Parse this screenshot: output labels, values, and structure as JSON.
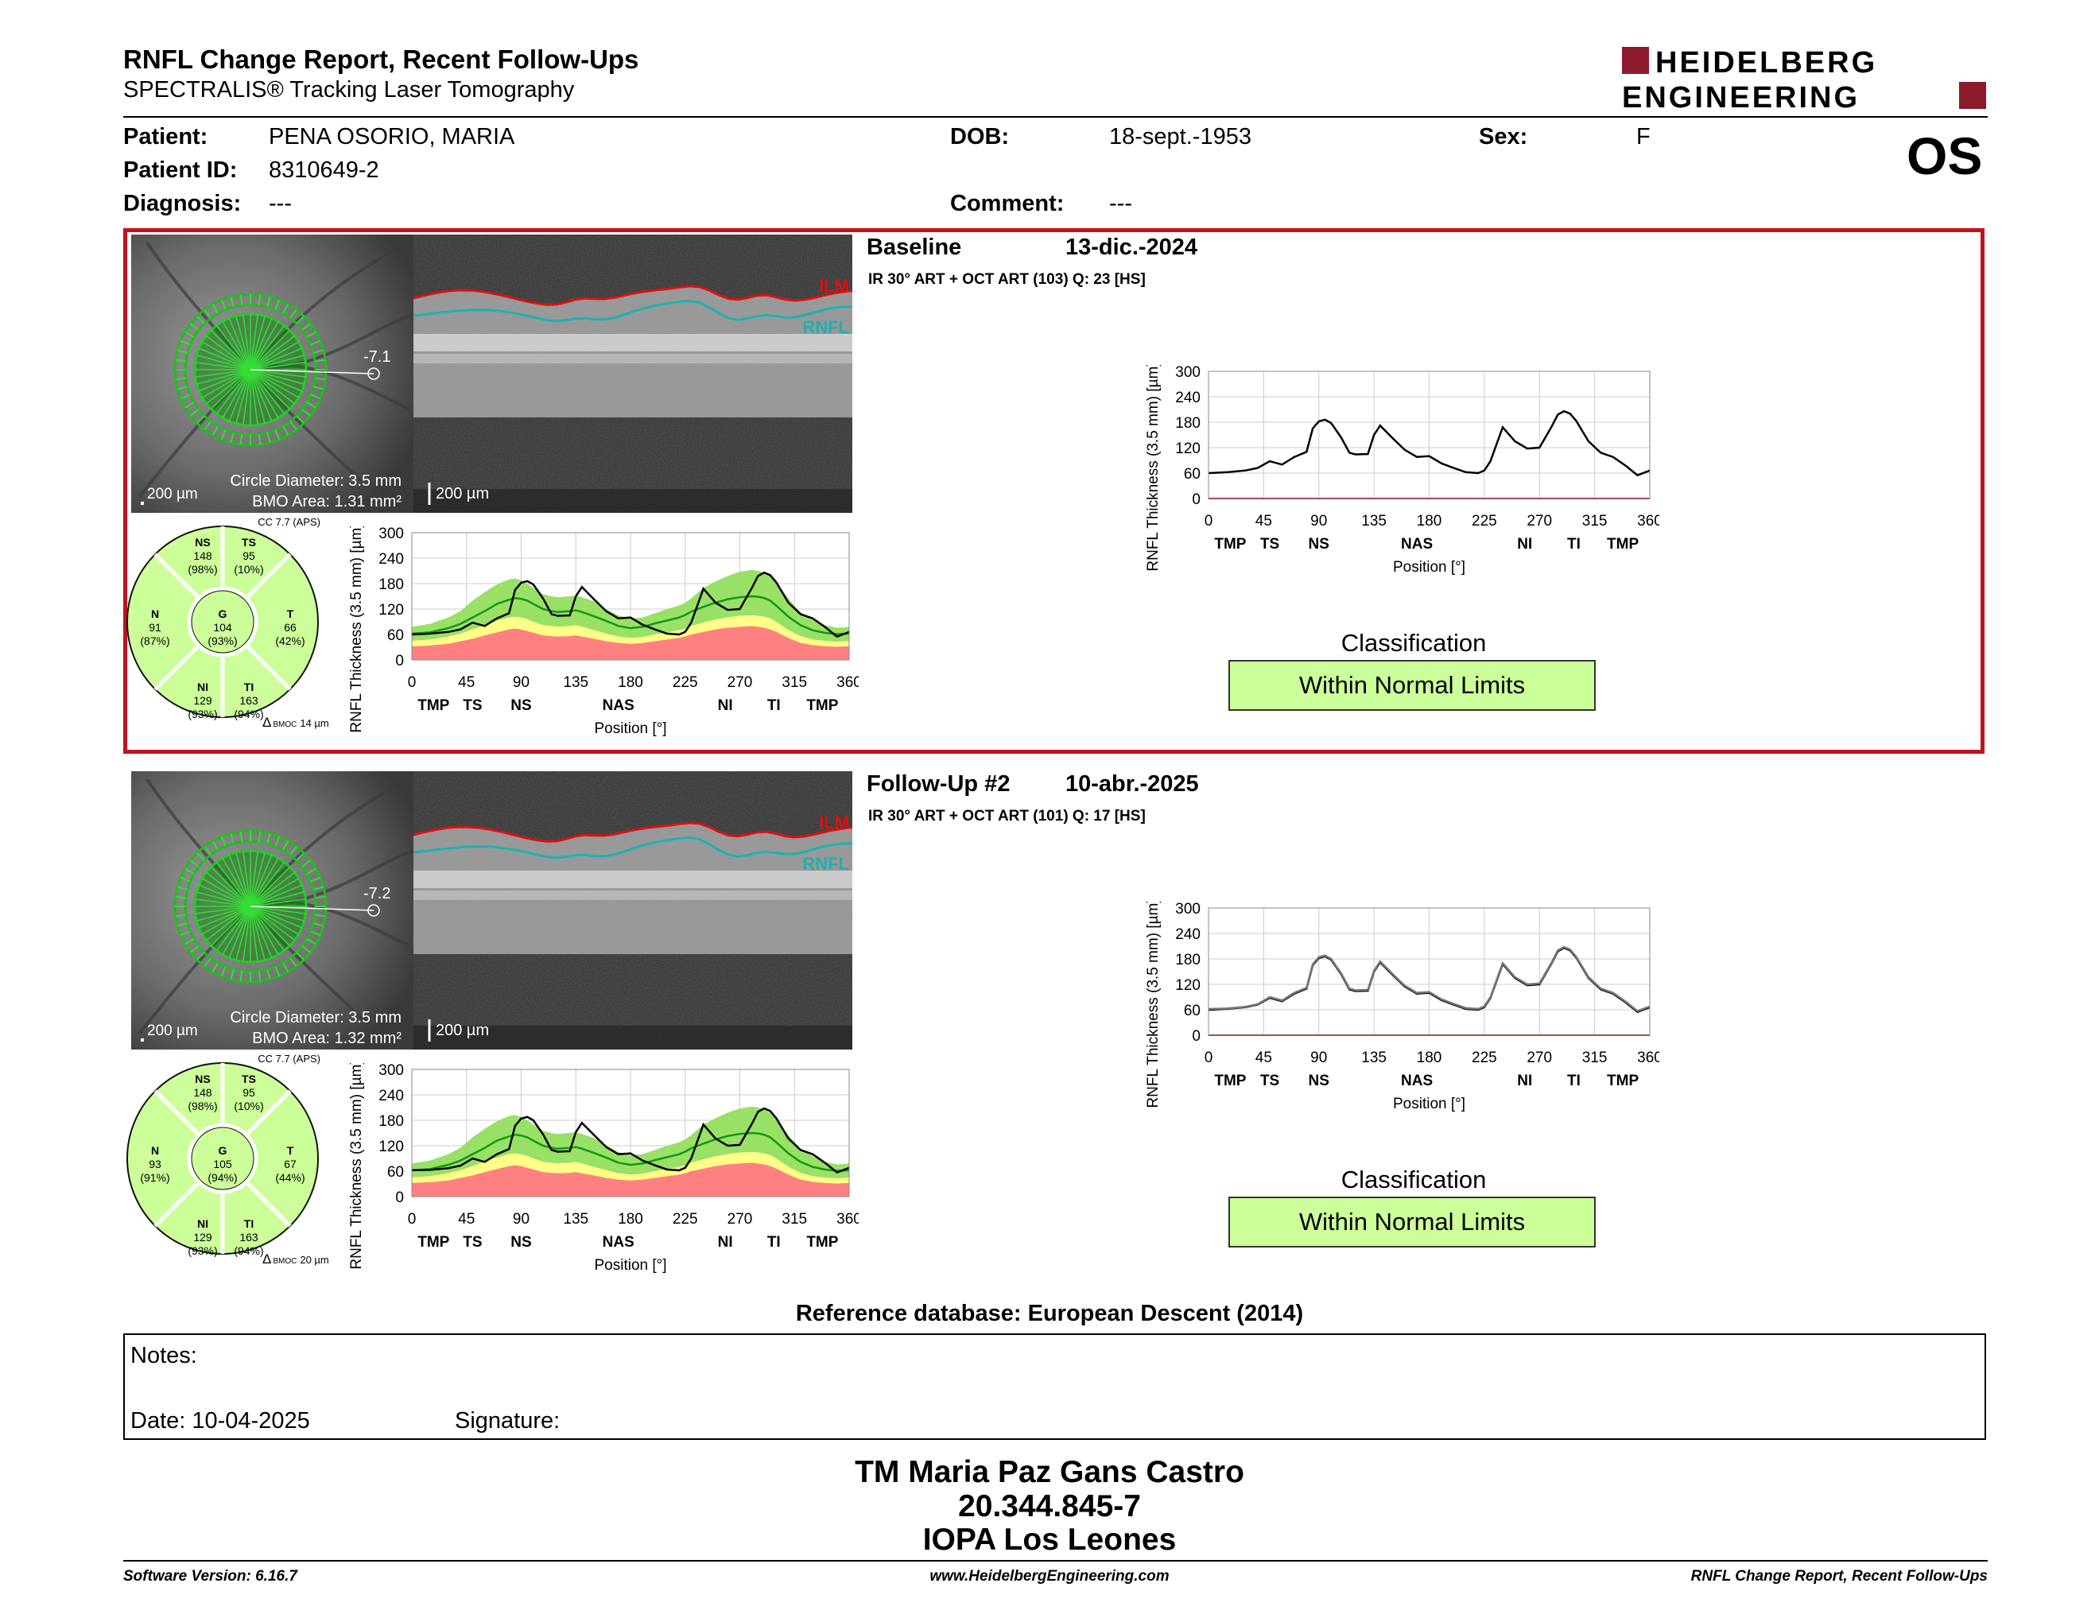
{
  "header": {
    "title": "RNFL Change Report, Recent Follow-Ups",
    "subtitle": "SPECTRALIS® Tracking Laser Tomography",
    "logo_line1": "HEIDELBERG",
    "logo_line2": "ENGINEERING",
    "eye": "OS"
  },
  "patient": {
    "patient_label": "Patient:",
    "patient_value": "PENA OSORIO, MARIA",
    "id_label": "Patient ID:",
    "id_value": "8310649-2",
    "diag_label": "Diagnosis:",
    "diag_value": "---",
    "dob_label": "DOB:",
    "dob_value": "18-sept.-1953",
    "comment_label": "Comment:",
    "comment_value": "---",
    "sex_label": "Sex:",
    "sex_value": "F"
  },
  "colors": {
    "highlight": "#c1121f",
    "normal_green": "#ccff99",
    "scan_green": "#33cc33",
    "ilm": "#e01010",
    "rnfl": "#20b0b0"
  },
  "exams": [
    {
      "label": "Baseline",
      "date": "13-dic.-2024",
      "protocol": "IR 30° ART + OCT ART (103) Q: 23 [HS]",
      "fundus": {
        "scale": "200 µm",
        "circle": "Circle Diameter: 3.5 mm",
        "bmo": "BMO Area: 1.31 mm²",
        "angle": "-7.1"
      },
      "bscan": {
        "scale": "200 µm",
        "ilm": "ILM",
        "rnfl": "RNFL"
      },
      "sectors": {
        "cc": "CC 7.7 (APS)",
        "NS": {
          "name": "NS",
          "value": "148",
          "pct": "(98%)"
        },
        "TS": {
          "name": "TS",
          "value": "95",
          "pct": "(10%)"
        },
        "N": {
          "name": "N",
          "value": "91",
          "pct": "(87%)"
        },
        "G": {
          "name": "G",
          "value": "104",
          "pct": "(93%)"
        },
        "T": {
          "name": "T",
          "value": "66",
          "pct": "(42%)"
        },
        "NI": {
          "name": "NI",
          "value": "129",
          "pct": "(93%)"
        },
        "TI": {
          "name": "TI",
          "value": "163",
          "pct": "(94%)"
        },
        "bmoc_prefix": "Δ",
        "bmoc_sub": "BMOC",
        "bmoc_value": "14 µm"
      },
      "classification_title": "Classification",
      "classification": "Within Normal Limits"
    },
    {
      "label": "Follow-Up #2",
      "date": "10-abr.-2025",
      "protocol": "IR 30° ART + OCT ART (101) Q: 17 [HS]",
      "fundus": {
        "scale": "200 µm",
        "circle": "Circle Diameter: 3.5 mm",
        "bmo": "BMO Area: 1.32 mm²",
        "angle": "-7.2"
      },
      "bscan": {
        "scale": "200 µm",
        "ilm": "ILM",
        "rnfl": "RNFL"
      },
      "sectors": {
        "cc": "CC 7.7 (APS)",
        "NS": {
          "name": "NS",
          "value": "148",
          "pct": "(98%)"
        },
        "TS": {
          "name": "TS",
          "value": "95",
          "pct": "(10%)"
        },
        "N": {
          "name": "N",
          "value": "93",
          "pct": "(91%)"
        },
        "G": {
          "name": "G",
          "value": "105",
          "pct": "(94%)"
        },
        "T": {
          "name": "T",
          "value": "67",
          "pct": "(44%)"
        },
        "NI": {
          "name": "NI",
          "value": "129",
          "pct": "(93%)"
        },
        "TI": {
          "name": "TI",
          "value": "163",
          "pct": "(94%)"
        },
        "bmoc_prefix": "Δ",
        "bmoc_sub": "BMOC",
        "bmoc_value": "20 µm"
      },
      "classification_title": "Classification",
      "classification": "Within Normal Limits"
    }
  ],
  "chart_data": [
    {
      "type": "area",
      "ylabel": "RNFL Thickness (3.5 mm) [µm]",
      "xlabel": "Position [°]",
      "x_ticks": [
        "0",
        "45",
        "90",
        "135",
        "180",
        "225",
        "270",
        "315",
        "360"
      ],
      "y_ticks": [
        "0",
        "60",
        "120",
        "180",
        "240",
        "300"
      ],
      "sector_labels": [
        "TMP",
        "TS",
        "NS",
        "NAS",
        "NI",
        "TI",
        "TMP"
      ],
      "sector_label_x": [
        10,
        50,
        90,
        170,
        258,
        298,
        338
      ],
      "xlim": [
        0,
        360
      ],
      "ylim": [
        0,
        300
      ],
      "x": [
        0,
        15,
        30,
        40,
        50,
        60,
        70,
        80,
        85,
        90,
        95,
        100,
        108,
        115,
        120,
        130,
        135,
        140,
        150,
        160,
        170,
        180,
        190,
        200,
        210,
        220,
        225,
        230,
        240,
        250,
        260,
        270,
        280,
        285,
        290,
        295,
        300,
        310,
        320,
        330,
        340,
        350,
        360
      ],
      "series": [
        {
          "name": "Baseline",
          "values": [
            60,
            62,
            66,
            72,
            88,
            80,
            98,
            110,
            165,
            182,
            186,
            178,
            145,
            108,
            104,
            105,
            150,
            172,
            143,
            115,
            98,
            100,
            83,
            72,
            62,
            60,
            66,
            88,
            168,
            135,
            118,
            120,
            170,
            198,
            206,
            200,
            183,
            135,
            108,
            98,
            78,
            55,
            66
          ]
        },
        {
          "name": "Follow-Up #2",
          "values": [
            62,
            63,
            67,
            73,
            90,
            82,
            100,
            112,
            167,
            184,
            188,
            180,
            147,
            110,
            106,
            107,
            152,
            174,
            145,
            117,
            100,
            102,
            85,
            74,
            64,
            62,
            68,
            90,
            170,
            137,
            120,
            122,
            172,
            200,
            208,
            202,
            185,
            137,
            110,
            100,
            80,
            57,
            68
          ]
        }
      ],
      "normal_band": {
        "upper": [
          78,
          85,
          100,
          115,
          140,
          160,
          178,
          190,
          192,
          188,
          180,
          170,
          155,
          150,
          148,
          150,
          152,
          148,
          138,
          120,
          105,
          98,
          100,
          110,
          120,
          128,
          135,
          145,
          170,
          185,
          198,
          208,
          212,
          210,
          205,
          198,
          182,
          145,
          112,
          95,
          82,
          76,
          78
        ],
        "mid": [
          62,
          65,
          75,
          85,
          100,
          115,
          132,
          142,
          146,
          144,
          140,
          132,
          120,
          115,
          113,
          115,
          117,
          113,
          103,
          92,
          80,
          75,
          78,
          86,
          93,
          100,
          106,
          114,
          125,
          135,
          143,
          148,
          150,
          149,
          146,
          140,
          128,
          102,
          82,
          70,
          64,
          61,
          62
        ],
        "border": [
          45,
          48,
          55,
          62,
          72,
          82,
          92,
          100,
          102,
          100,
          96,
          90,
          82,
          80,
          78,
          80,
          82,
          78,
          70,
          62,
          55,
          52,
          54,
          60,
          65,
          70,
          74,
          80,
          88,
          95,
          100,
          104,
          105,
          104,
          102,
          98,
          90,
          70,
          56,
          48,
          45,
          43,
          45
        ],
        "low": [
          32,
          34,
          38,
          44,
          50,
          58,
          65,
          72,
          74,
          72,
          68,
          64,
          58,
          56,
          55,
          56,
          58,
          55,
          50,
          44,
          40,
          38,
          40,
          44,
          48,
          52,
          55,
          60,
          66,
          72,
          76,
          78,
          80,
          78,
          76,
          72,
          66,
          52,
          40,
          35,
          32,
          31,
          32
        ]
      }
    }
  ],
  "reference_db": "Reference database: European Descent (2014)",
  "notes": {
    "notes_label": "Notes:",
    "date_label": "Date: 10-04-2025",
    "signature_label": "Signature:"
  },
  "signatory": {
    "name": "TM Maria Paz Gans Castro",
    "id": "20.344.845-7",
    "institution": "IOPA Los Leones"
  },
  "footer": {
    "software": "Software Version: 6.16.7",
    "website": "www.HeidelbergEngineering.com",
    "report": "RNFL Change Report, Recent Follow-Ups"
  }
}
